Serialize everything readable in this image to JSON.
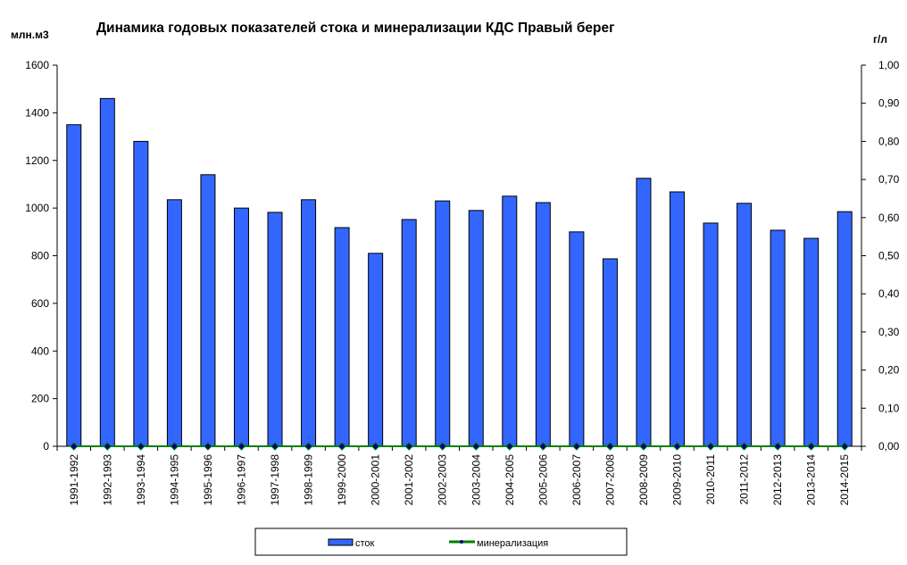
{
  "chart_data": {
    "type": "bar",
    "title": "Динамика годовых показателей стока и минерализации КДС Правый берег",
    "ylabel": "млн.м3",
    "y2label": "г/л",
    "ylim": [
      0,
      1600
    ],
    "y2lim": [
      0,
      1
    ],
    "yticks": [
      "0",
      "200",
      "400",
      "600",
      "800",
      "1000",
      "1200",
      "1400",
      "1600"
    ],
    "y2ticks": [
      "0,00",
      "0,10",
      "0,20",
      "0,30",
      "0,40",
      "0,50",
      "0,60",
      "0,70",
      "0,80",
      "0,90",
      "1,00"
    ],
    "grid": false,
    "legend_position": "bottom",
    "categories": [
      "1991-1992",
      "1992-1993",
      "1993-1994",
      "1994-1995",
      "1995-1996",
      "1996-1997",
      "1997-1998",
      "1998-1999",
      "1999-2000",
      "2000-2001",
      "2001-2002",
      "2002-2003",
      "2003-2004",
      "2004-2005",
      "2005-2006",
      "2006-2007",
      "2007-2008",
      "2008-2009",
      "2009-2010",
      "2010-2011",
      "2011-2012",
      "2012-2013",
      "2013-2014",
      "2014-2015"
    ],
    "series": [
      {
        "name": "сток",
        "type": "bar",
        "axis": "left",
        "color": "#3366ff",
        "values": [
          1350,
          1460,
          1280,
          1035,
          1140,
          1000,
          982,
          1035,
          918,
          810,
          952,
          1030,
          990,
          1050,
          1023,
          900,
          787,
          1125,
          1068,
          937,
          1020,
          907,
          873,
          985
        ]
      },
      {
        "name": "минерализация",
        "type": "line",
        "axis": "right",
        "color": "#008000",
        "marker_color": "#000080",
        "values": [
          0,
          0,
          0,
          0,
          0,
          0,
          0,
          0,
          0,
          0,
          0,
          0,
          0,
          0,
          0,
          0,
          0,
          0,
          0,
          0,
          0,
          0,
          0,
          0
        ]
      }
    ]
  }
}
